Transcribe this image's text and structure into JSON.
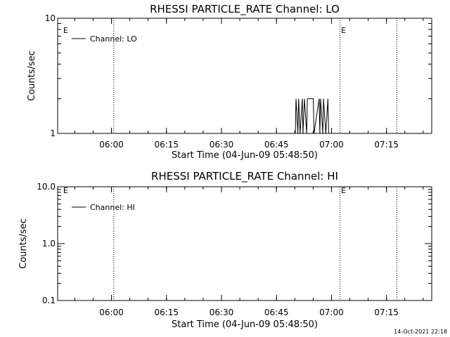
{
  "chart_data": [
    {
      "type": "line",
      "title": "RHESSI PARTICLE_RATE Channel: LO",
      "xlabel": "Start Time (04-Jun-09 05:48:50)",
      "ylabel": "Counts/sec",
      "x_range_min": [
        -3.5,
        98.5
      ],
      "x_tick_min": [
        11.17,
        26.17,
        41.17,
        56.17,
        71.17,
        86.17
      ],
      "x_tick_labels": [
        "06:00",
        "06:15",
        "06:30",
        "06:45",
        "07:00",
        "07:15"
      ],
      "y_scale": "log",
      "ylim": [
        1,
        10
      ],
      "y_ticks": [
        1,
        10
      ],
      "y_tick_labels": [
        "1",
        "10"
      ],
      "legend": {
        "label": "Channel: LO",
        "position": "top-left"
      },
      "event_lines_min": [
        11.8,
        73.5,
        89.0
      ],
      "event_label": "E",
      "event_label_min": [
        -2.0,
        73.8
      ],
      "series": [
        {
          "x": [
            0,
            61.3,
            61.5,
            62.0,
            62.2,
            62.6,
            63.2,
            63.4,
            63.8,
            64.4,
            64.6,
            66.2,
            66.4,
            67.8,
            68.0,
            68.2,
            68.8,
            69.0,
            69.6,
            70.2,
            70.4,
            88.5
          ],
          "values": [
            1,
            1,
            2,
            1,
            2,
            1,
            2,
            1,
            2,
            1,
            2,
            2,
            1,
            2,
            1,
            2,
            1,
            2,
            1,
            2,
            1,
            1
          ]
        }
      ]
    },
    {
      "type": "line",
      "title": "RHESSI PARTICLE_RATE Channel: HI",
      "xlabel": "Start Time (04-Jun-09 05:48:50)",
      "ylabel": "Counts/sec",
      "x_range_min": [
        -3.5,
        98.5
      ],
      "x_tick_min": [
        11.17,
        26.17,
        41.17,
        56.17,
        71.17,
        86.17
      ],
      "x_tick_labels": [
        "06:00",
        "06:15",
        "06:30",
        "06:45",
        "07:00",
        "07:15"
      ],
      "y_scale": "log",
      "ylim": [
        0.1,
        10
      ],
      "y_ticks": [
        0.1,
        1,
        10
      ],
      "y_tick_labels": [
        "0.1",
        "1.0",
        "10.0"
      ],
      "legend": {
        "label": "Channel: HI",
        "position": "top-left"
      },
      "event_lines_min": [
        11.8,
        73.5,
        89.0
      ],
      "event_label": "E",
      "event_label_min": [
        -2.0,
        73.8
      ],
      "series": [
        {
          "x": [],
          "values": []
        }
      ]
    }
  ],
  "footer": {
    "timestamp": "14-Oct-2021 22:18"
  },
  "colors": {
    "background": "#ffffff",
    "foreground": "#000000"
  }
}
